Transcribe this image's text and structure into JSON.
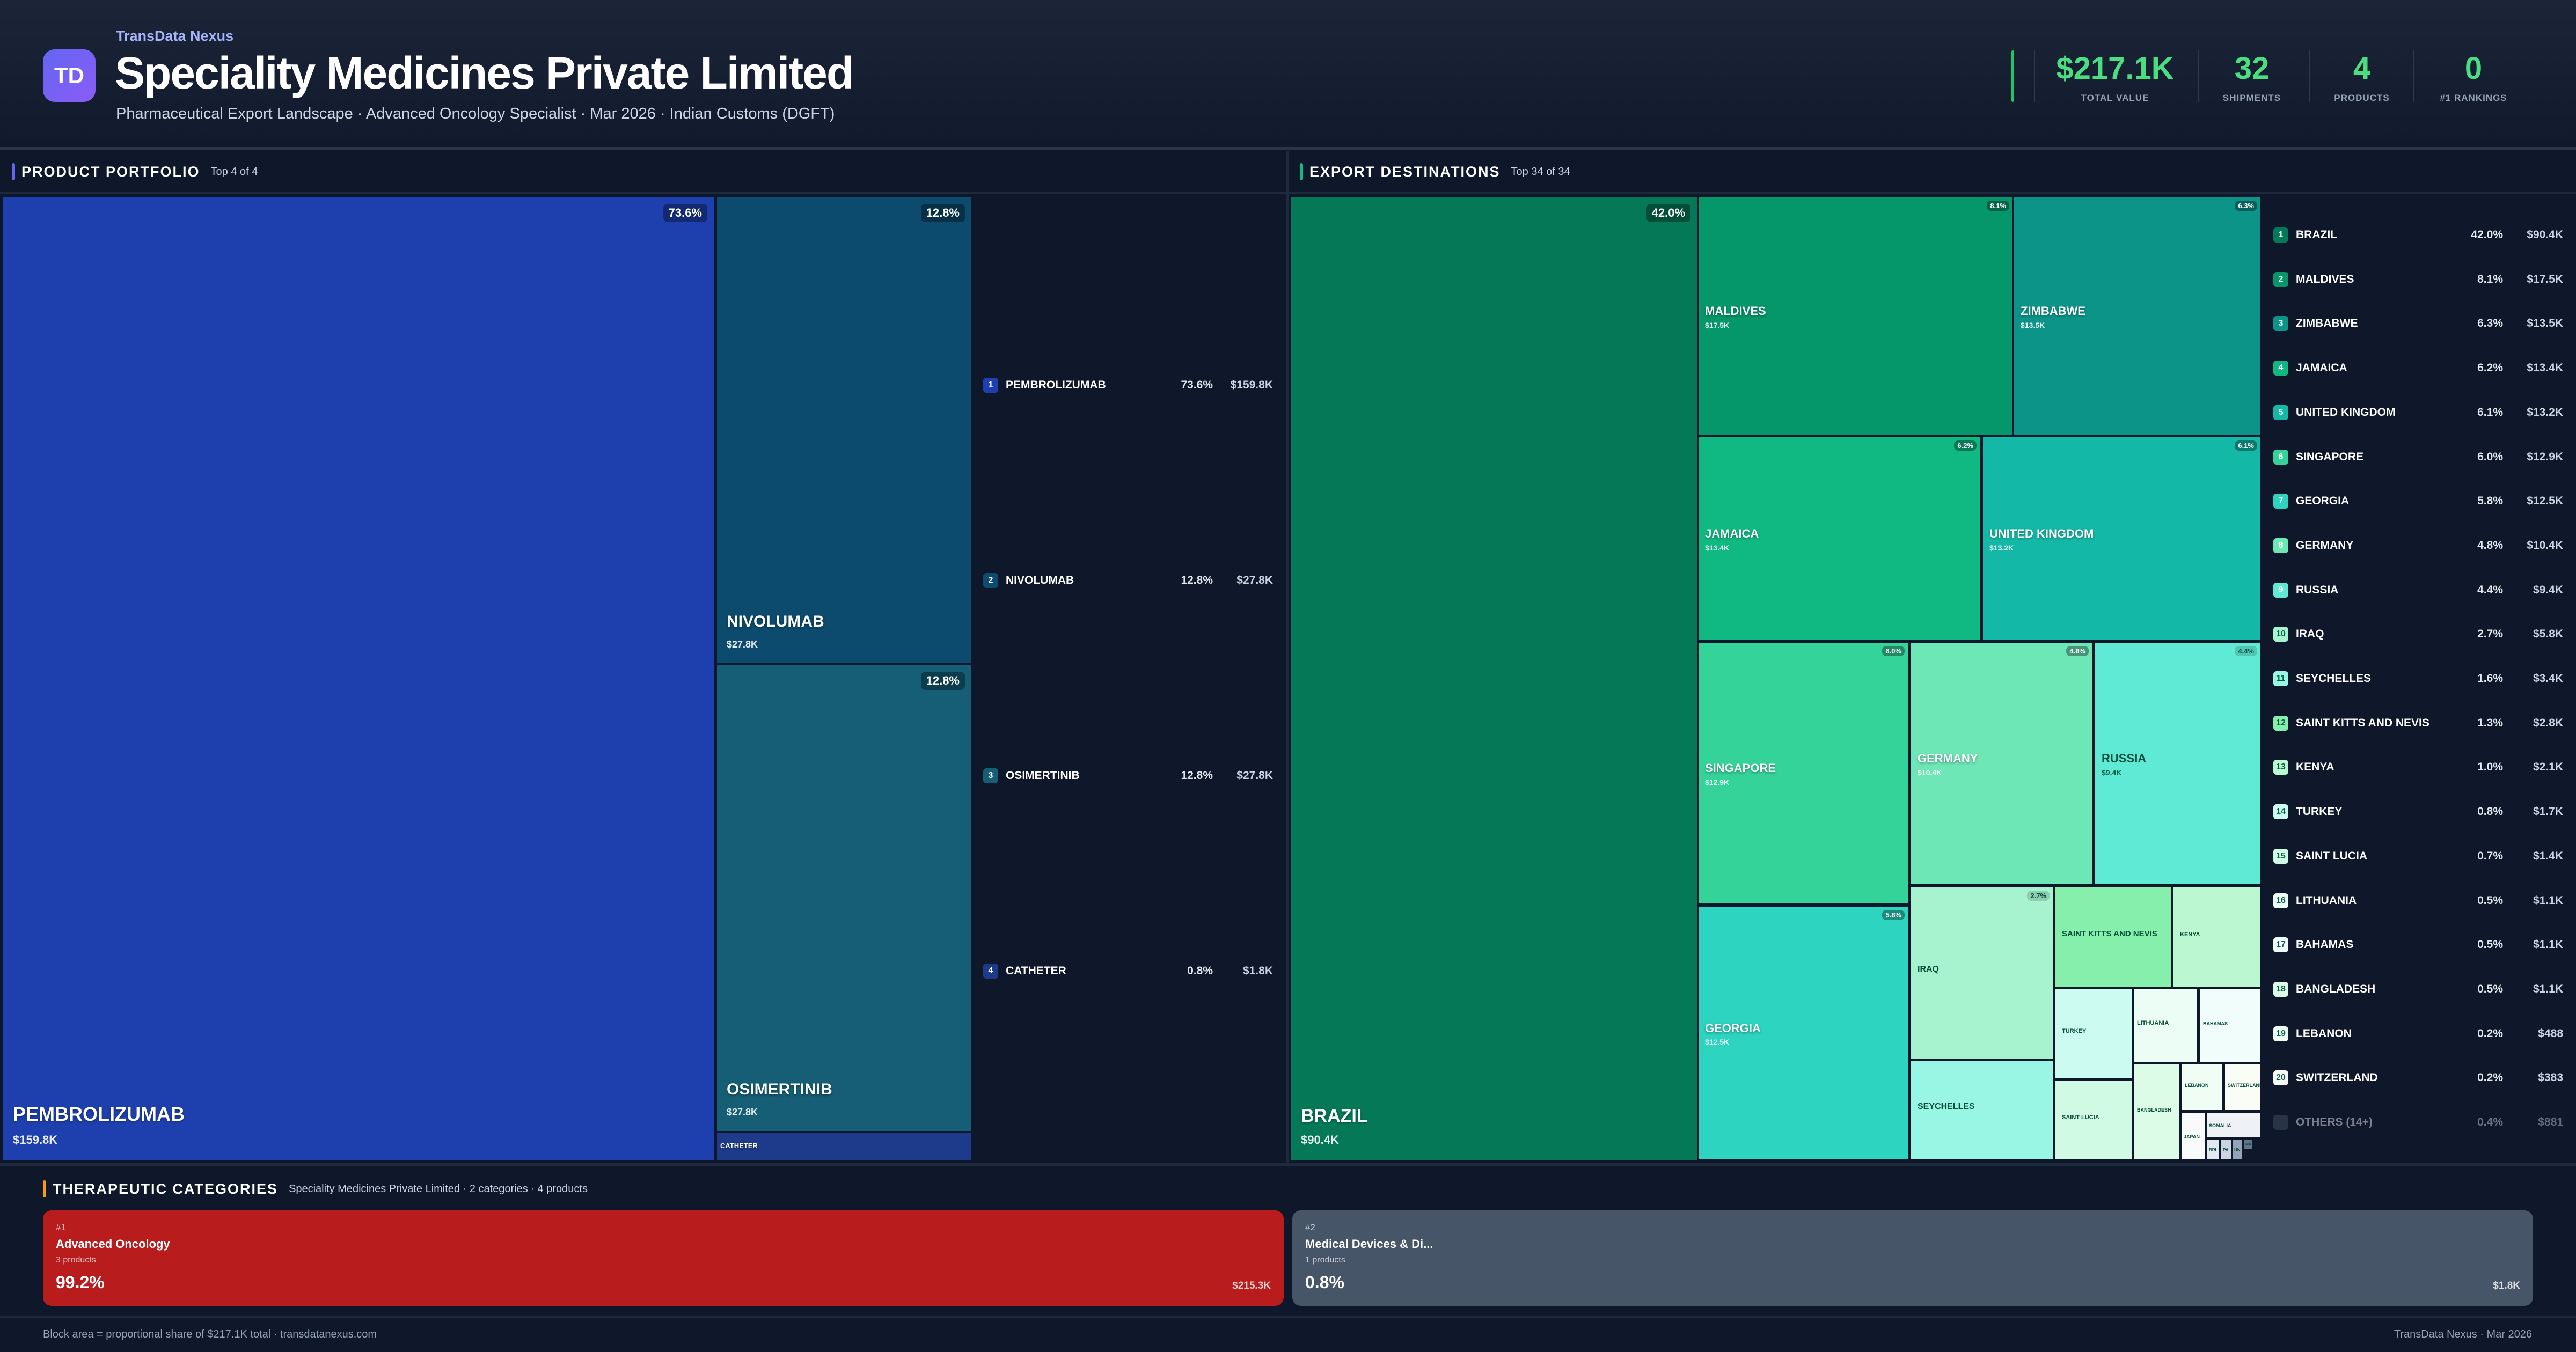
{
  "header": {
    "logo_text": "TD",
    "brand": "TransData Nexus",
    "title": "Speciality Medicines Private Limited",
    "subtitle": "Pharmaceutical Export Landscape · Advanced Oncology Specialist · Mar 2026 · Indian Customs (DGFT)",
    "stats": [
      {
        "value": "$217.1K",
        "label": "TOTAL VALUE"
      },
      {
        "value": "32",
        "label": "SHIPMENTS"
      },
      {
        "value": "4",
        "label": "PRODUCTS"
      },
      {
        "value": "0",
        "label": "#1 RANKINGS"
      }
    ],
    "accent_color": "#4ade80"
  },
  "products": {
    "title": "PRODUCT PORTFOLIO",
    "subtitle": "Top 4 of 4",
    "accent_color": "#6366f1",
    "items": [
      {
        "rank": "1",
        "name": "PEMBROLIZUMAB",
        "pct": "73.6%",
        "value": "$159.8K",
        "color": "#1e40af"
      },
      {
        "rank": "2",
        "name": "NIVOLUMAB",
        "pct": "12.8%",
        "value": "$27.8K",
        "color": "#0c4a6e"
      },
      {
        "rank": "3",
        "name": "OSIMERTINIB",
        "pct": "12.8%",
        "value": "$27.8K",
        "color": "#155e75"
      },
      {
        "rank": "4",
        "name": "CATHETER",
        "pct": "0.8%",
        "value": "$1.8K",
        "color": "#1e3a8a"
      }
    ]
  },
  "destinations": {
    "title": "EXPORT DESTINATIONS",
    "subtitle": "Top 34 of 34",
    "accent_color": "#10b981",
    "items": [
      {
        "rank": "1",
        "name": "BRAZIL",
        "pct": "42.0%",
        "value": "$90.4K",
        "color": "#047857"
      },
      {
        "rank": "2",
        "name": "MALDIVES",
        "pct": "8.1%",
        "value": "$17.5K",
        "color": "#059669"
      },
      {
        "rank": "3",
        "name": "ZIMBABWE",
        "pct": "6.3%",
        "value": "$13.5K",
        "color": "#0d9488"
      },
      {
        "rank": "4",
        "name": "JAMAICA",
        "pct": "6.2%",
        "value": "$13.4K",
        "color": "#10b981"
      },
      {
        "rank": "5",
        "name": "UNITED KINGDOM",
        "pct": "6.1%",
        "value": "$13.2K",
        "color": "#14b8a6"
      },
      {
        "rank": "6",
        "name": "SINGAPORE",
        "pct": "6.0%",
        "value": "$12.9K",
        "color": "#34d399"
      },
      {
        "rank": "7",
        "name": "GEORGIA",
        "pct": "5.8%",
        "value": "$12.5K",
        "color": "#2dd4bf"
      },
      {
        "rank": "8",
        "name": "GERMANY",
        "pct": "4.8%",
        "value": "$10.4K",
        "color": "#6ee7b7"
      },
      {
        "rank": "9",
        "name": "RUSSIA",
        "pct": "4.4%",
        "value": "$9.4K",
        "color": "#5eead4"
      },
      {
        "rank": "10",
        "name": "IRAQ",
        "pct": "2.7%",
        "value": "$5.8K",
        "color": "#a7f3d0"
      },
      {
        "rank": "11",
        "name": "SEYCHELLES",
        "pct": "1.6%",
        "value": "$3.4K",
        "color": "#99f6e4"
      },
      {
        "rank": "12",
        "name": "SAINT KITTS AND NEVIS",
        "pct": "1.3%",
        "value": "$2.8K",
        "color": "#86efac"
      },
      {
        "rank": "13",
        "name": "KENYA",
        "pct": "1.0%",
        "value": "$2.1K",
        "color": "#bbf7d0"
      },
      {
        "rank": "14",
        "name": "TURKEY",
        "pct": "0.8%",
        "value": "$1.7K",
        "color": "#ccfbf1"
      },
      {
        "rank": "15",
        "name": "SAINT LUCIA",
        "pct": "0.7%",
        "value": "$1.4K",
        "color": "#d1fae5"
      },
      {
        "rank": "16",
        "name": "LITHUANIA",
        "pct": "0.5%",
        "value": "$1.1K",
        "color": "#ecfdf5"
      },
      {
        "rank": "17",
        "name": "BAHAMAS",
        "pct": "0.5%",
        "value": "$1.1K",
        "color": "#f0fdfa"
      },
      {
        "rank": "18",
        "name": "BANGLADESH",
        "pct": "0.5%",
        "value": "$1.1K",
        "color": "#dcfce7"
      },
      {
        "rank": "19",
        "name": "LEBANON",
        "pct": "0.2%",
        "value": "$488",
        "color": "#f0fdf4"
      },
      {
        "rank": "20",
        "name": "SWITZERLAND",
        "pct": "0.2%",
        "value": "$383",
        "color": "#fafdf5"
      }
    ],
    "extra_cells": [
      {
        "name": "JAPAN",
        "color": "#f8fafc"
      },
      {
        "name": "SOMALIA",
        "color": "#eef2f7"
      },
      {
        "name": "BRI",
        "color": "#e2e8f0"
      },
      {
        "name": "PA",
        "color": "#cbd5e1"
      },
      {
        "name": "UN",
        "color": "#94a3b8"
      },
      {
        "name": "MA",
        "color": "#64748b"
      }
    ],
    "others": {
      "name": "OTHERS (14+)",
      "pct": "0.4%",
      "value": "$881",
      "color": "#475569"
    }
  },
  "categories": {
    "title": "THERAPEUTIC CATEGORIES",
    "subtitle": "Speciality Medicines Private Limited · 2 categories · 4 products",
    "accent_color": "#f59e0b",
    "items": [
      {
        "rank": "#1",
        "name": "Advanced Oncology",
        "products": "3 products",
        "pct": "99.2%",
        "value": "$215.3K",
        "color": "#b91c1c"
      },
      {
        "rank": "#2",
        "name": "Medical Devices & Di...",
        "products": "1 products",
        "pct": "0.8%",
        "value": "$1.8K",
        "color": "#475569"
      }
    ]
  },
  "footer": {
    "left": "Block area = proportional share of $217.1K total · transdatanexus.com",
    "right": "TransData Nexus · Mar 2026"
  }
}
